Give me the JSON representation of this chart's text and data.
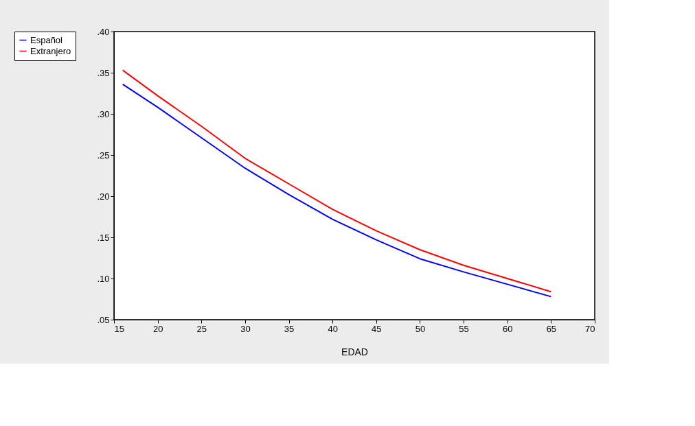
{
  "chart_data": {
    "type": "line",
    "xlabel": "EDAD",
    "x": [
      16,
      20,
      25,
      30,
      35,
      40,
      45,
      50,
      55,
      60,
      65
    ],
    "series": [
      {
        "name": "Español",
        "color": "#0000ff",
        "values": [
          0.336,
          0.308,
          0.271,
          0.234,
          0.202,
          0.172,
          0.147,
          0.124,
          0.108,
          0.093,
          0.078
        ]
      },
      {
        "name": "Extranjero",
        "color": "#ff0000",
        "values": [
          0.353,
          0.322,
          0.285,
          0.246,
          0.215,
          0.184,
          0.158,
          0.135,
          0.116,
          0.1,
          0.084
        ]
      }
    ],
    "xlim": [
      15,
      70
    ],
    "xticks": [
      15,
      20,
      25,
      30,
      35,
      40,
      45,
      50,
      55,
      60,
      65,
      70
    ],
    "ylim": [
      0.05,
      0.4
    ],
    "yticks": [
      {
        "value": 0.05,
        "label": ".05"
      },
      {
        "value": 0.1,
        "label": ".10"
      },
      {
        "value": 0.15,
        "label": ".15"
      },
      {
        "value": 0.2,
        "label": ".20"
      },
      {
        "value": 0.25,
        "label": ".25"
      },
      {
        "value": 0.3,
        "label": ".30"
      },
      {
        "value": 0.35,
        "label": ".35"
      },
      {
        "value": 0.4,
        "label": ".40"
      }
    ],
    "grid": false,
    "legend": "left",
    "marker": "none",
    "line_style": "solid"
  }
}
